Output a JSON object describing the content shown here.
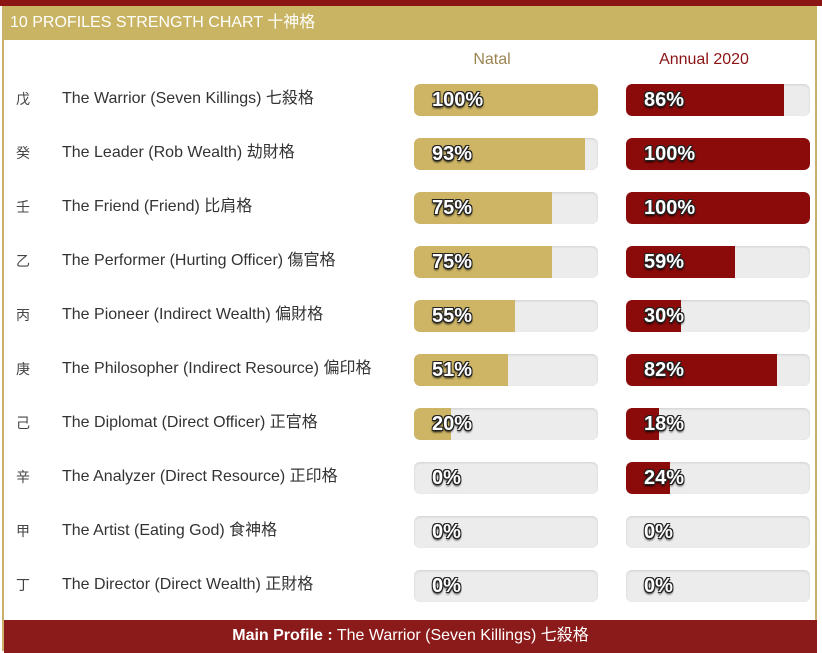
{
  "header": {
    "title": "10 PROFILES STRENGTH CHART 十神格"
  },
  "columns": {
    "natal": "Natal",
    "annual": "Annual 2020"
  },
  "chart_data": {
    "type": "bar",
    "categories": [
      "The Warrior (Seven Killings) 七殺格",
      "The Leader (Rob Wealth) 劫財格",
      "The Friend (Friend) 比肩格",
      "The Performer (Hurting Officer) 傷官格",
      "The Pioneer (Indirect Wealth) 偏財格",
      "The Philosopher (Indirect Resource) 偏印格",
      "The Diplomat (Direct Officer) 正官格",
      "The Analyzer (Direct Resource) 正印格",
      "The Artist (Eating God) 食神格",
      "The Director (Direct Wealth) 正財格"
    ],
    "series": [
      {
        "name": "Natal",
        "values": [
          100,
          93,
          75,
          75,
          55,
          51,
          20,
          0,
          0,
          0
        ]
      },
      {
        "name": "Annual 2020",
        "values": [
          86,
          100,
          100,
          59,
          30,
          82,
          18,
          24,
          0,
          0
        ]
      }
    ],
    "stems": [
      "戊",
      "癸",
      "壬",
      "乙",
      "丙",
      "庚",
      "己",
      "辛",
      "甲",
      "丁"
    ],
    "ylim": [
      0,
      100
    ],
    "colors": {
      "natal": "#cdb565",
      "annual": "#8b0a0a",
      "track": "#ececec"
    }
  },
  "footer": {
    "label": "Main Profile :",
    "value": "The Warrior (Seven Killings) 七殺格"
  }
}
